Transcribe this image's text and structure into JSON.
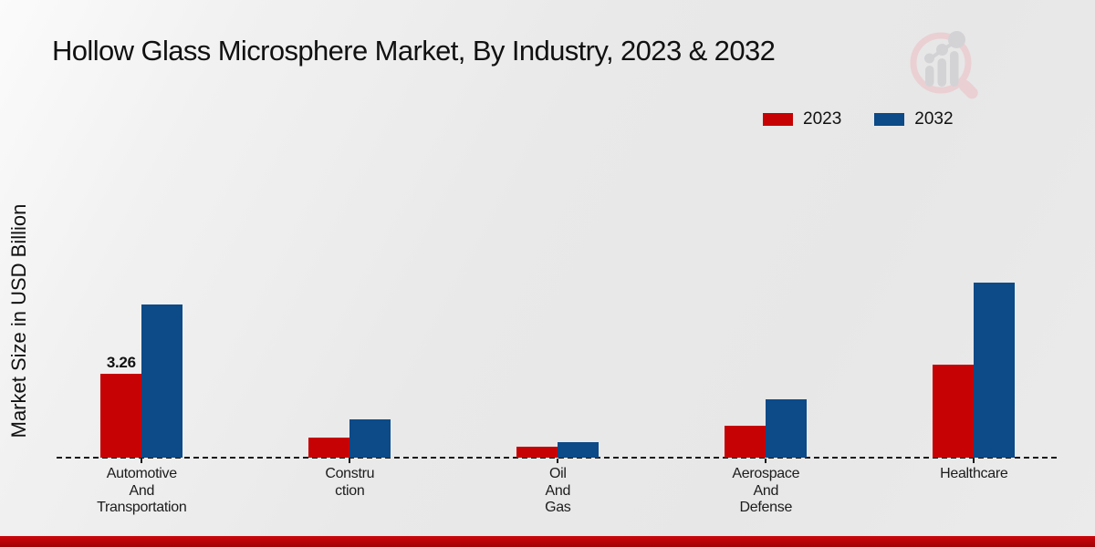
{
  "title": "Hollow Glass Microsphere Market, By Industry, 2023 & 2032",
  "y_axis_label": "Market Size in USD Billion",
  "legend": {
    "items": [
      "2023",
      "2032"
    ]
  },
  "logo": {
    "icon": "magnifier-growth-chart-logo"
  },
  "colors": {
    "series_2023": "#c70204",
    "series_2032": "#0c4a88",
    "footer_bar": "#c5050a",
    "background": "#ebebeb",
    "text": "#111111"
  },
  "chart_data": {
    "type": "bar",
    "title": "Hollow Glass Microsphere Market, By Industry, 2023 & 2032",
    "ylabel": "Market Size in USD Billion",
    "xlabel": "",
    "categories": [
      "Automotive And Transportation",
      "Construction",
      "Oil And Gas",
      "Aerospace And Defense",
      "Healthcare"
    ],
    "category_label_lines": [
      [
        "Automotive",
        "And",
        "Transportation"
      ],
      [
        "Constru",
        "ction"
      ],
      [
        "Oil",
        "And",
        "Gas"
      ],
      [
        "Aerospace",
        "And",
        "Defense"
      ],
      [
        "Healthcare"
      ]
    ],
    "series": [
      {
        "name": "2023",
        "color": "#c70204",
        "values": [
          3.26,
          0.78,
          0.42,
          1.25,
          3.63
        ]
      },
      {
        "name": "2032",
        "color": "#0c4a88",
        "values": [
          5.97,
          1.49,
          0.62,
          2.27,
          6.81
        ]
      }
    ],
    "bar_value_labels": [
      {
        "series_index": 0,
        "category_index": 0,
        "text": "3.26"
      }
    ],
    "ylim": [
      0,
      7
    ],
    "grid": "off",
    "legend_position": "top-right",
    "zero_line_style": "dashed"
  }
}
